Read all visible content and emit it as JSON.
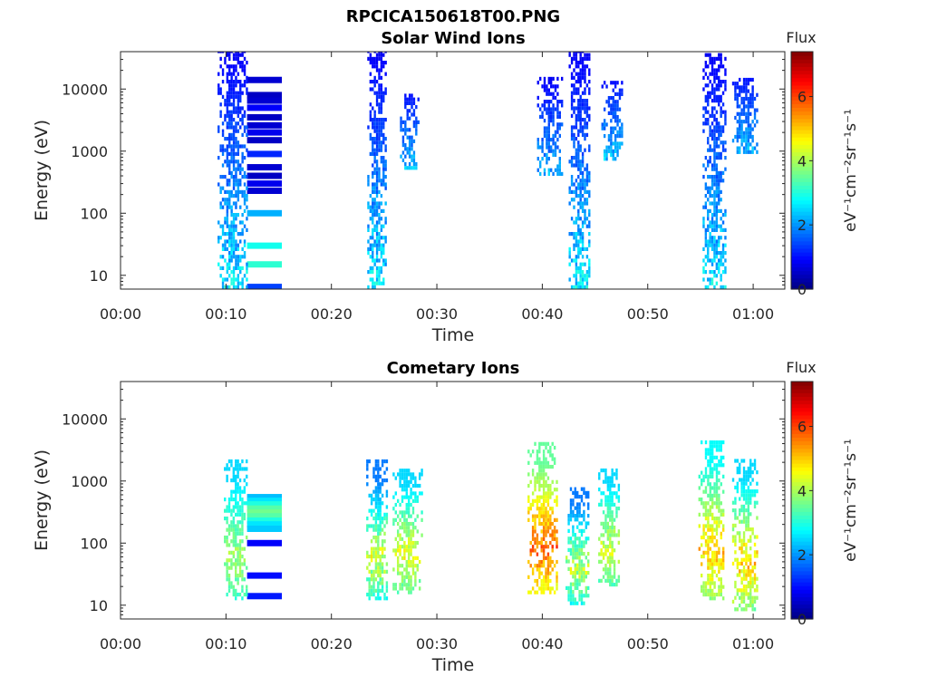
{
  "figure_title": "RPCICA150618T00.PNG",
  "chart_data": [
    {
      "type": "heatmap",
      "title": "Solar Wind Ions",
      "xlabel": "Time",
      "ylabel": "Energy (eV)",
      "x_ticks": [
        "00:00",
        "00:10",
        "00:20",
        "00:30",
        "00:40",
        "00:50",
        "01:00"
      ],
      "x_tick_minutes": [
        0,
        10,
        20,
        30,
        40,
        50,
        60
      ],
      "xlim_minutes": [
        0,
        63
      ],
      "y_scale": "log",
      "y_ticks": [
        "10",
        "100",
        "1000",
        "10000"
      ],
      "y_tick_values": [
        10,
        100,
        1000,
        10000
      ],
      "ylim": [
        6,
        40000
      ],
      "colorbar": {
        "title": "Flux",
        "label": "eV⁻¹cm⁻²sr⁻¹s⁻¹",
        "ticks": [
          "0",
          "2",
          "4",
          "6"
        ],
        "tick_values": [
          0,
          2,
          4,
          6
        ],
        "range": [
          0,
          7.4
        ],
        "colormap": "jet"
      },
      "grid": false,
      "bursts": [
        {
          "t_start": 9.2,
          "t_end": 12.0,
          "e_min": 6,
          "e_max": 40000,
          "f_low": 0.8,
          "f_high": 3.2
        },
        {
          "t_start": 23.4,
          "t_end": 25.2,
          "e_min": 6,
          "e_max": 40000,
          "f_low": 0.8,
          "f_high": 3.2
        },
        {
          "t_start": 26.5,
          "t_end": 28.2,
          "e_min": 500,
          "e_max": 8000,
          "f_low": 1.0,
          "f_high": 2.6
        },
        {
          "t_start": 39.5,
          "t_end": 41.8,
          "e_min": 400,
          "e_max": 15000,
          "f_low": 0.8,
          "f_high": 2.6
        },
        {
          "t_start": 42.5,
          "t_end": 44.4,
          "e_min": 6,
          "e_max": 40000,
          "f_low": 0.8,
          "f_high": 3.2
        },
        {
          "t_start": 45.6,
          "t_end": 47.6,
          "e_min": 700,
          "e_max": 12000,
          "f_low": 1.0,
          "f_high": 2.8
        },
        {
          "t_start": 55.2,
          "t_end": 57.4,
          "e_min": 6,
          "e_max": 35000,
          "f_low": 0.8,
          "f_high": 3.2
        },
        {
          "t_start": 58.0,
          "t_end": 60.3,
          "e_min": 900,
          "e_max": 15000,
          "f_low": 1.0,
          "f_high": 2.6
        }
      ],
      "energy_lines": {
        "t_start": 12.0,
        "t_end": 15.3,
        "levels": [
          {
            "energy": 14000,
            "flux": 0.6
          },
          {
            "energy": 8000,
            "flux": 0.5
          },
          {
            "energy": 6500,
            "flux": 0.6
          },
          {
            "energy": 5000,
            "flux": 0.9
          },
          {
            "energy": 3500,
            "flux": 0.5
          },
          {
            "energy": 2600,
            "flux": 0.6
          },
          {
            "energy": 2000,
            "flux": 0.8
          },
          {
            "energy": 1500,
            "flux": 0.5
          },
          {
            "energy": 900,
            "flux": 1.2
          },
          {
            "energy": 550,
            "flux": 0.6
          },
          {
            "energy": 400,
            "flux": 0.5
          },
          {
            "energy": 300,
            "flux": 0.8
          },
          {
            "energy": 230,
            "flux": 0.6
          },
          {
            "energy": 100,
            "flux": 2.2
          },
          {
            "energy": 30,
            "flux": 2.9
          },
          {
            "energy": 15,
            "flux": 3.1
          },
          {
            "energy": 6.5,
            "flux": 1.4
          }
        ]
      }
    },
    {
      "type": "heatmap",
      "title": "Cometary Ions",
      "xlabel": "Time",
      "ylabel": "Energy (eV)",
      "x_ticks": [
        "00:00",
        "00:10",
        "00:20",
        "00:30",
        "00:40",
        "00:50",
        "01:00"
      ],
      "x_tick_minutes": [
        0,
        10,
        20,
        30,
        40,
        50,
        60
      ],
      "xlim_minutes": [
        0,
        63
      ],
      "y_scale": "log",
      "y_ticks": [
        "10",
        "100",
        "1000",
        "10000"
      ],
      "y_tick_values": [
        10,
        100,
        1000,
        10000
      ],
      "ylim": [
        6,
        40000
      ],
      "colorbar": {
        "title": "Flux",
        "label": "eV⁻¹cm⁻²sr⁻¹s⁻¹",
        "ticks": [
          "0",
          "2",
          "4",
          "6"
        ],
        "tick_values": [
          0,
          2,
          4,
          6
        ],
        "range": [
          0,
          7.4
        ],
        "colormap": "jet"
      },
      "grid": false,
      "bursts": [
        {
          "t_start": 9.8,
          "t_end": 12.0,
          "e_min": 12,
          "e_max": 2000,
          "f_low": 2.5,
          "f_high": 4.3
        },
        {
          "t_start": 23.3,
          "t_end": 25.3,
          "e_min": 12,
          "e_max": 2000,
          "f_low": 1.8,
          "f_high": 5.0
        },
        {
          "t_start": 25.8,
          "t_end": 28.5,
          "e_min": 15,
          "e_max": 1500,
          "f_low": 2.5,
          "f_high": 5.0
        },
        {
          "t_start": 38.6,
          "t_end": 41.4,
          "e_min": 15,
          "e_max": 4000,
          "f_low": 3.5,
          "f_high": 6.3
        },
        {
          "t_start": 42.2,
          "t_end": 44.4,
          "e_min": 10,
          "e_max": 700,
          "f_low": 1.8,
          "f_high": 4.8
        },
        {
          "t_start": 45.3,
          "t_end": 47.3,
          "e_min": 20,
          "e_max": 1500,
          "f_low": 2.5,
          "f_high": 4.8
        },
        {
          "t_start": 54.8,
          "t_end": 57.2,
          "e_min": 12,
          "e_max": 4000,
          "f_low": 2.8,
          "f_high": 5.6
        },
        {
          "t_start": 58.0,
          "t_end": 60.3,
          "e_min": 8,
          "e_max": 2200,
          "f_low": 2.5,
          "f_high": 5.6
        }
      ],
      "energy_lines": {
        "t_start": 12.0,
        "t_end": 15.3,
        "levels": [
          {
            "energy": 550,
            "flux": 2.3
          },
          {
            "energy": 480,
            "flux": 2.6
          },
          {
            "energy": 420,
            "flux": 3.0
          },
          {
            "energy": 360,
            "flux": 3.4
          },
          {
            "energy": 310,
            "flux": 3.6
          },
          {
            "energy": 270,
            "flux": 3.4
          },
          {
            "energy": 230,
            "flux": 3.0
          },
          {
            "energy": 200,
            "flux": 2.6
          },
          {
            "energy": 170,
            "flux": 2.4
          },
          {
            "energy": 100,
            "flux": 0.9
          },
          {
            "energy": 30,
            "flux": 1.0
          },
          {
            "energy": 14,
            "flux": 1.1
          }
        ]
      }
    }
  ]
}
